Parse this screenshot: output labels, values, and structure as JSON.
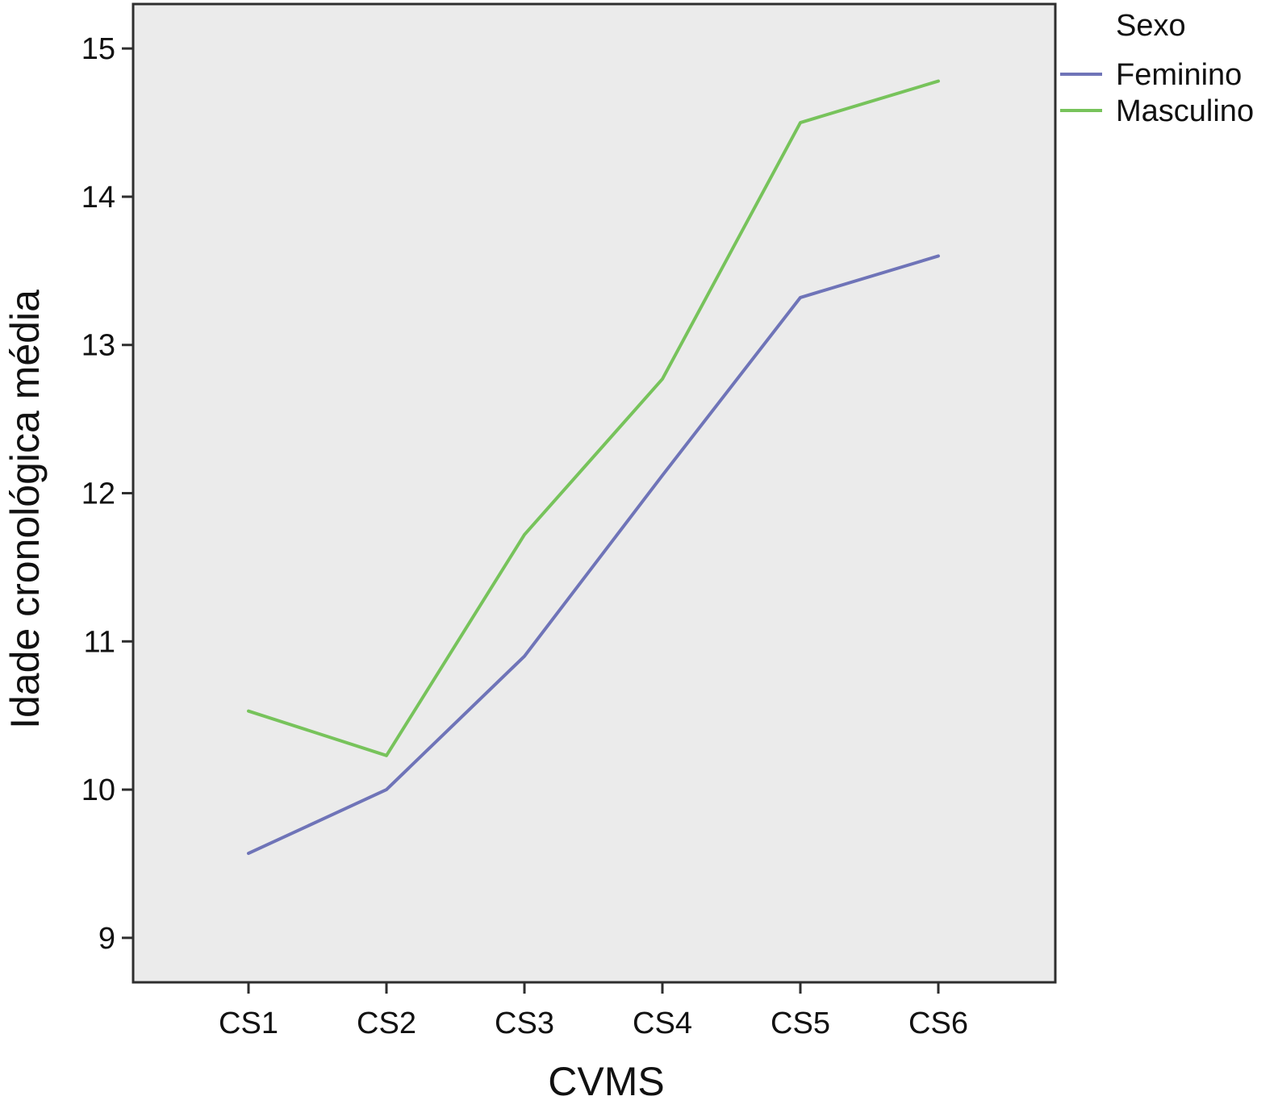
{
  "chart_data": {
    "type": "line",
    "title": "",
    "xlabel": "CVMS",
    "ylabel": "Idade cronológica média",
    "categories": [
      "CS1",
      "CS2",
      "CS3",
      "CS4",
      "CS5",
      "CS6"
    ],
    "y_ticks": [
      "9",
      "10",
      "11",
      "12",
      "13",
      "14",
      "15"
    ],
    "ylim": [
      8.7,
      15.3
    ],
    "grid": false,
    "legend": {
      "title": "Sexo",
      "position": "top-right-outside"
    },
    "series": [
      {
        "name": "Feminino",
        "color": "#6f74b8",
        "values": [
          9.57,
          10.0,
          10.9,
          12.12,
          13.32,
          13.6
        ]
      },
      {
        "name": "Masculino",
        "color": "#77c35b",
        "values": [
          10.53,
          10.23,
          11.72,
          12.77,
          14.5,
          14.78
        ]
      }
    ],
    "plot_background": "#ebebeb",
    "frame_color": "#2e2e2e"
  }
}
